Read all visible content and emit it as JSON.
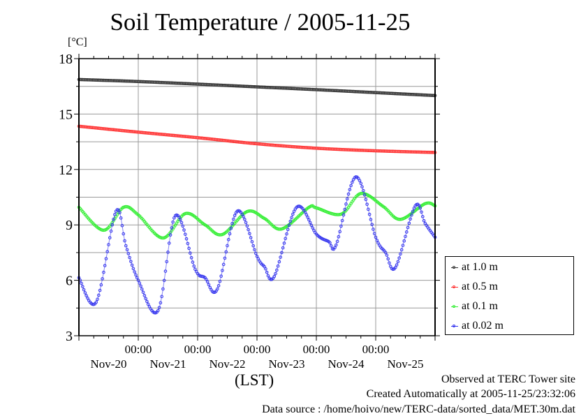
{
  "chart_data": {
    "type": "line",
    "title": "Soil Temperature / 2005-11-25",
    "ylabel": "[°C]",
    "xlabel": "(LST)",
    "ylim": [
      3,
      18
    ],
    "yticks": [
      3,
      6,
      9,
      12,
      15,
      18
    ],
    "ytick_labels": [
      "3",
      "6",
      "9",
      "12",
      "15",
      "18"
    ],
    "y_minor_step": 1.5,
    "xlim_hours": [
      0,
      144
    ],
    "x_origin": "2005-11-20 00:00",
    "x_major_hours": [
      24,
      48,
      72,
      96,
      120
    ],
    "x_major_labels": [
      "00:00",
      "00:00",
      "00:00",
      "00:00",
      "00:00"
    ],
    "x_minor_step_hours": 6,
    "x_day_labels": [
      "Nov-20",
      "Nov-21",
      "Nov-22",
      "Nov-23",
      "Nov-24",
      "Nov-25"
    ],
    "grid": true,
    "legend_position": "right-bottom",
    "series": [
      {
        "name": "at 1.0 m",
        "color": "#333333",
        "x": [
          0,
          24,
          48,
          72,
          96,
          120,
          144
        ],
        "y": [
          16.87,
          16.76,
          16.62,
          16.47,
          16.32,
          16.16,
          16.0
        ]
      },
      {
        "name": "at 0.5 m",
        "color": "#ff3333",
        "x": [
          0,
          24,
          48,
          72,
          96,
          120,
          144
        ],
        "y": [
          14.34,
          14.02,
          13.72,
          13.39,
          13.15,
          13.01,
          12.92
        ]
      },
      {
        "name": "at 0.1 m",
        "color": "#33ee33",
        "x": [
          0,
          10,
          18,
          24,
          34,
          43,
          51,
          58,
          68,
          75,
          82,
          93,
          96,
          106,
          114,
          123,
          130,
          140,
          144
        ],
        "y": [
          9.95,
          8.71,
          9.95,
          9.54,
          8.29,
          9.61,
          9.0,
          8.48,
          9.72,
          9.35,
          8.78,
          9.95,
          9.92,
          9.58,
          10.7,
          10.0,
          9.3,
          10.15,
          10.03
        ]
      },
      {
        "name": "at 0.02 m",
        "color": "#3333ee",
        "x": [
          0,
          7,
          15,
          19,
          24,
          32,
          39,
          47,
          51,
          56,
          64,
          72,
          75,
          79,
          88,
          96,
          101,
          104,
          112,
          120,
          124,
          128,
          136,
          140,
          144
        ],
        "y": [
          6.14,
          4.82,
          9.74,
          7.87,
          6.0,
          4.36,
          9.5,
          6.6,
          6.14,
          5.53,
          9.74,
          7.3,
          6.74,
          6.21,
          9.95,
          8.5,
          8.1,
          7.91,
          11.6,
          8.33,
          7.5,
          6.7,
          10.03,
          9.08,
          8.33
        ]
      }
    ]
  },
  "footer": {
    "observed": "Observed at TERC Tower site",
    "created": "Created Automatically at 2005-11-25/23:32:06",
    "source": "Data source : /home/hoivo/new/TERC-data/sorted_data/MET.30m.dat"
  }
}
